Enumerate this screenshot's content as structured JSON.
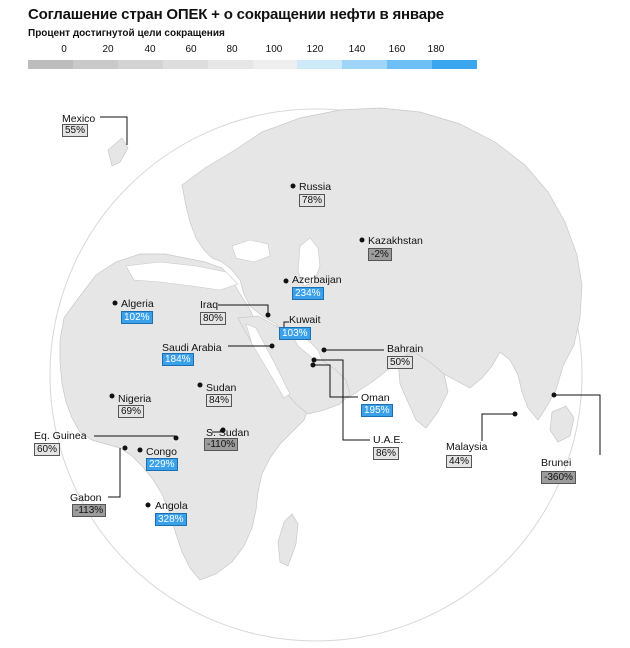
{
  "title": "Соглашение стран ОПЕК + о сокращении нефти в январе",
  "subtitle": "Процент достигнутой цели сокращения",
  "legend": {
    "ticks": [
      "0",
      "20",
      "40",
      "60",
      "80",
      "100",
      "120",
      "140",
      "160",
      "180"
    ],
    "colors": [
      "#bdbdbd",
      "#c9c9c9",
      "#d3d3d3",
      "#dddddd",
      "#e6e6e6",
      "#eeeeee",
      "#cdeafb",
      "#9fd6f8",
      "#6dbff4",
      "#3aa6f0"
    ]
  },
  "countries": [
    {
      "name": "Mexico",
      "value": "55%"
    },
    {
      "name": "Russia",
      "value": "78%"
    },
    {
      "name": "Kazakhstan",
      "value": "-2%"
    },
    {
      "name": "Azerbaijan",
      "value": "234%"
    },
    {
      "name": "Algeria",
      "value": "102%"
    },
    {
      "name": "Iraq",
      "value": "80%"
    },
    {
      "name": "Kuwait",
      "value": "103%"
    },
    {
      "name": "Saudi Arabia",
      "value": "184%"
    },
    {
      "name": "Bahrain",
      "value": "50%"
    },
    {
      "name": "Sudan",
      "value": "84%"
    },
    {
      "name": "Nigeria",
      "value": "69%"
    },
    {
      "name": "Oman",
      "value": "195%"
    },
    {
      "name": "S. Sudan",
      "value": "-110%"
    },
    {
      "name": "Eq. Guinea",
      "value": "60%"
    },
    {
      "name": "Congo",
      "value": "229%"
    },
    {
      "name": "U.A.E.",
      "value": "86%"
    },
    {
      "name": "Malaysia",
      "value": "44%"
    },
    {
      "name": "Brunei",
      "value": "-360%"
    },
    {
      "name": "Gabon",
      "value": "-113%"
    },
    {
      "name": "Angola",
      "value": "328%"
    }
  ]
}
